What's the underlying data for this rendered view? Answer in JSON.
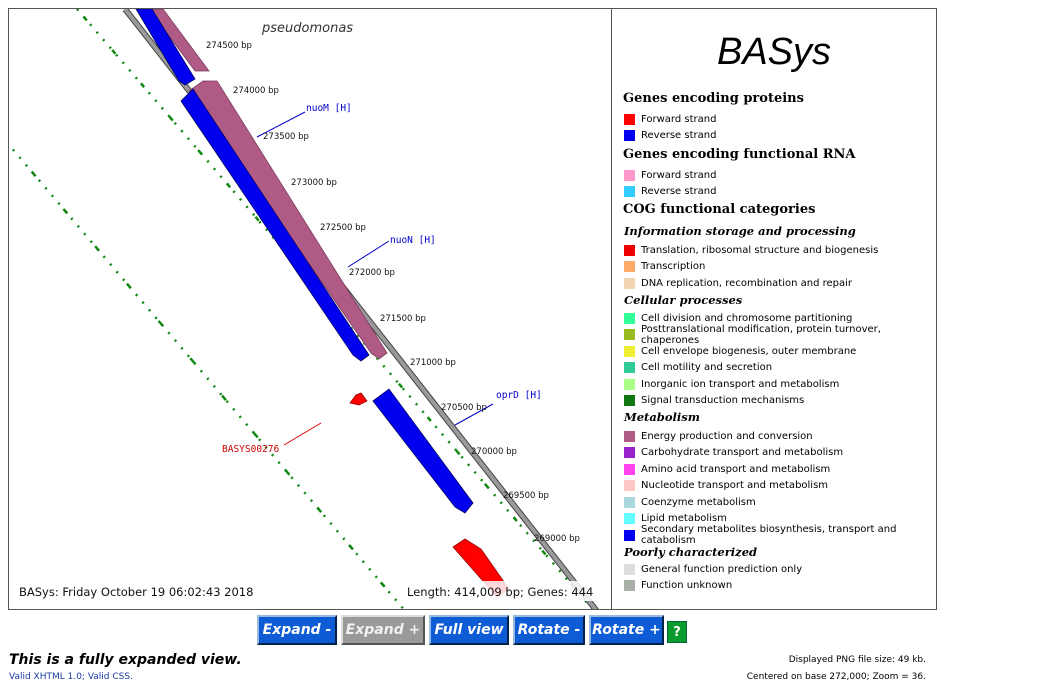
{
  "map": {
    "organism": "pseudomonas",
    "timestamp": "BASys: Friday October 19 06:02:43 2018",
    "summary": "Length: 414,009 bp; Genes: 444",
    "ticks": [
      "274500 bp",
      "274000 bp",
      "273500 bp",
      "273000 bp",
      "272500 bp",
      "272000 bp",
      "271500 bp",
      "271000 bp",
      "270500 bp",
      "270000 bp",
      "269500 bp",
      "269000 bp"
    ],
    "gene_labels": {
      "nuoM": "nuoM [H]",
      "nuoN": "nuoN [H]",
      "oprD": "oprD [H]",
      "basys": "BASYS00276"
    },
    "colors": {
      "backbone": "#808080",
      "reverse": "#0000ee",
      "energy": "#b05b86",
      "forward": "#ff0000",
      "ruler": "#118811"
    }
  },
  "legend": {
    "title": "BASys",
    "sections": {
      "proteins": "Genes encoding proteins",
      "rna": "Genes encoding functional RNA",
      "cog": "COG functional categories"
    },
    "subsections": {
      "info": "Information storage and processing",
      "cellular": "Cellular processes",
      "metabolism": "Metabolism",
      "poor": "Poorly characterized"
    },
    "proteins": [
      {
        "label": "Forward strand",
        "color": "#ff0000"
      },
      {
        "label": "Reverse strand",
        "color": "#0000ee"
      }
    ],
    "rna": [
      {
        "label": "Forward strand",
        "color": "#ff99cc"
      },
      {
        "label": "Reverse strand",
        "color": "#33ccff"
      }
    ],
    "info": [
      {
        "label": "Translation, ribosomal structure and biogenesis",
        "color": "#ee0000"
      },
      {
        "label": "Transcription",
        "color": "#ffaa66"
      },
      {
        "label": "DNA replication, recombination and repair",
        "color": "#f2d6b3"
      }
    ],
    "cellular": [
      {
        "label": "Cell division and chromosome partitioning",
        "color": "#33ff99"
      },
      {
        "label": "Posttranslational modification, protein turnover, chaperones",
        "color": "#99bb22"
      },
      {
        "label": "Cell envelope biogenesis, outer membrane",
        "color": "#eeee33"
      },
      {
        "label": "Cell motility and secretion",
        "color": "#33cc99"
      },
      {
        "label": "Inorganic ion transport and metabolism",
        "color": "#aaff88"
      },
      {
        "label": "Signal transduction mechanisms",
        "color": "#117711"
      }
    ],
    "metabolism": [
      {
        "label": "Energy production and conversion",
        "color": "#b05b86"
      },
      {
        "label": "Carbohydrate transport and metabolism",
        "color": "#9922cc"
      },
      {
        "label": "Amino acid transport and metabolism",
        "color": "#ff44ee"
      },
      {
        "label": "Nucleotide transport and metabolism",
        "color": "#ffc8c8"
      },
      {
        "label": "Coenzyme metabolism",
        "color": "#aad8dd"
      },
      {
        "label": "Lipid metabolism",
        "color": "#66ffff"
      },
      {
        "label": "Secondary metabolites biosynthesis, transport and catabolism",
        "color": "#0000ee"
      }
    ],
    "poor": [
      {
        "label": "General function prediction only",
        "color": "#dddddd"
      },
      {
        "label": "Function unknown",
        "color": "#a8b0a8"
      }
    ]
  },
  "toolbar": {
    "expand_minus": "Expand -",
    "expand_plus": "Expand +",
    "full_view": "Full view",
    "rotate_minus": "Rotate -",
    "rotate_plus": "Rotate +",
    "help": "?"
  },
  "footer": {
    "expanded_note": "This is a fully expanded view.",
    "valid": "Valid XHTML 1.0; Valid CSS.",
    "png_size": "Displayed PNG file size: 49 kb.",
    "centered": "Centered on base 272,000; Zoom = 36."
  }
}
